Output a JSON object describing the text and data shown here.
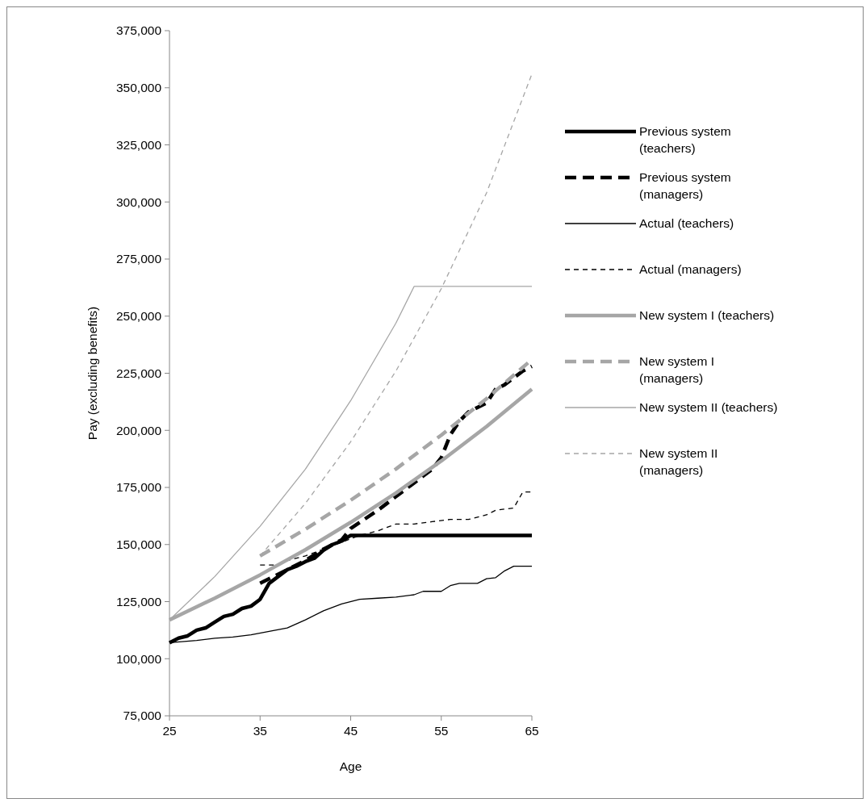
{
  "chart_data": {
    "type": "line",
    "xlabel": "Age",
    "ylabel": "Pay (excluding benefits)",
    "xlim": [
      25,
      65
    ],
    "xticks": [
      25,
      35,
      45,
      55,
      65
    ],
    "ylim": [
      75000,
      375000
    ],
    "yticks": [
      {
        "value": 75000,
        "label": "75,000"
      },
      {
        "value": 100000,
        "label": "100,000"
      },
      {
        "value": 125000,
        "label": "125,000"
      },
      {
        "value": 150000,
        "label": "150,000"
      },
      {
        "value": 175000,
        "label": "175,000"
      },
      {
        "value": 200000,
        "label": "200,000"
      },
      {
        "value": 225000,
        "label": "225,000"
      },
      {
        "value": 250000,
        "label": "250,000"
      },
      {
        "value": 275000,
        "label": "275,000"
      },
      {
        "value": 300000,
        "label": "300,000"
      },
      {
        "value": 325000,
        "label": "325,000"
      },
      {
        "value": 350000,
        "label": "350,000"
      },
      {
        "value": 375000,
        "label": "375,000"
      }
    ],
    "grid": false,
    "legend": "right",
    "series": [
      {
        "name": "Previous system\n(teachers)",
        "color": "#000000",
        "line_style": "solid",
        "x": [
          25,
          26,
          27,
          28,
          29,
          30,
          31,
          32,
          33,
          34,
          35,
          36,
          37,
          38,
          39,
          40,
          41,
          42,
          43,
          44,
          45,
          46,
          65
        ],
        "values": [
          107000,
          109000,
          110000,
          112500,
          113500,
          116000,
          118500,
          119500,
          122000,
          123000,
          126000,
          133000,
          136000,
          139000,
          140500,
          142500,
          144000,
          147500,
          150000,
          151500,
          154000,
          154000,
          154000
        ]
      },
      {
        "name": "Previous system\n(managers)",
        "color": "#000000",
        "line_style": "dashed",
        "x": [
          35,
          38,
          40,
          42,
          44,
          45,
          48,
          50,
          52,
          54,
          55,
          56,
          57,
          58,
          60,
          61,
          62,
          64,
          65
        ],
        "values": [
          133000,
          139000,
          143000,
          148000,
          152000,
          157000,
          165000,
          171000,
          177000,
          183000,
          188000,
          198000,
          204000,
          208000,
          212000,
          218000,
          220000,
          226000,
          228000
        ]
      },
      {
        "name": "Actual (teachers)",
        "color": "#000000",
        "line_style": "solid",
        "x": [
          25,
          28,
          30,
          32,
          34,
          36,
          38,
          40,
          42,
          44,
          46,
          48,
          50,
          52,
          53,
          55,
          56,
          57,
          59,
          60,
          61,
          62,
          63,
          65
        ],
        "values": [
          107000,
          108000,
          109000,
          109500,
          110500,
          112000,
          113500,
          117000,
          121000,
          124000,
          126000,
          126500,
          127000,
          128000,
          129500,
          129500,
          132000,
          133000,
          133000,
          135000,
          135500,
          138500,
          140500,
          140500
        ]
      },
      {
        "name": "Actual (managers)",
        "color": "#000000",
        "line_style": "dashed",
        "x": [
          35,
          37,
          38,
          40,
          42,
          44,
          46,
          48,
          50,
          52,
          54,
          56,
          58,
          60,
          61,
          63,
          64,
          65
        ],
        "values": [
          141000,
          141000,
          143000,
          145000,
          148000,
          151000,
          154000,
          156000,
          159000,
          159000,
          160000,
          161000,
          161000,
          163000,
          165000,
          166000,
          173000,
          173000
        ]
      },
      {
        "name": "New system I (teachers)",
        "color": "#a6a6a6",
        "line_style": "solid",
        "x": [
          25,
          30,
          35,
          40,
          45,
          50,
          55,
          60,
          65
        ],
        "values": [
          117000,
          126500,
          136700,
          147700,
          159700,
          172600,
          186600,
          201700,
          218000
        ]
      },
      {
        "name": "New system I\n(managers)",
        "color": "#a6a6a6",
        "line_style": "dashed",
        "x": [
          35,
          40,
          45,
          50,
          55,
          60,
          65
        ],
        "values": [
          145000,
          156700,
          169400,
          183100,
          197900,
          213900,
          231000
        ]
      },
      {
        "name": "New system II (teachers)",
        "color": "#a6a6a6",
        "line_style": "solid",
        "x": [
          25,
          30,
          35,
          40,
          45,
          50,
          52,
          65
        ],
        "values": [
          117000,
          136000,
          158000,
          183000,
          213000,
          247000,
          263000,
          263000
        ]
      },
      {
        "name": "New system II\n(managers)",
        "color": "#a6a6a6",
        "line_style": "dashed",
        "x": [
          35,
          40,
          45,
          50,
          55,
          60,
          65
        ],
        "values": [
          145000,
          168000,
          195000,
          226000,
          262000,
          304000,
          356000
        ]
      }
    ]
  }
}
